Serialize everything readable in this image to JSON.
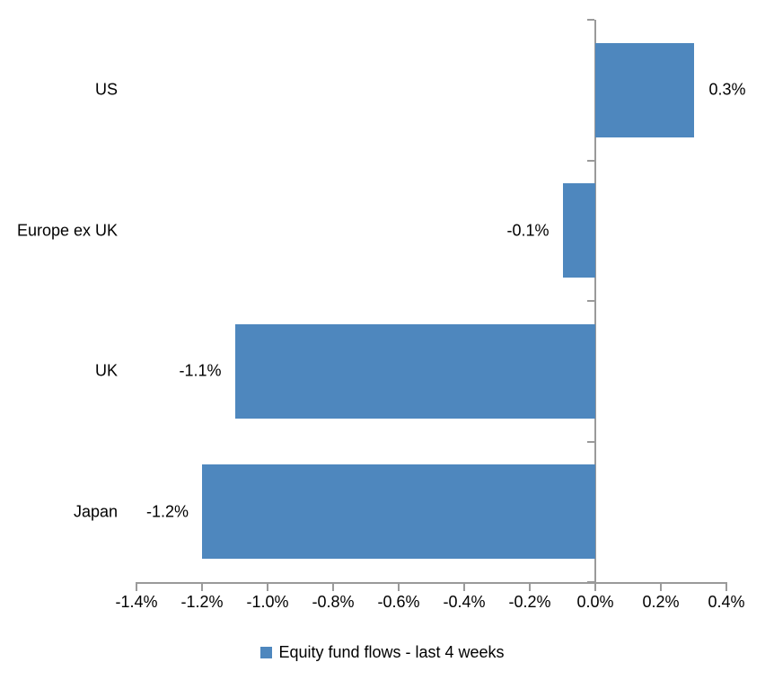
{
  "chart_data": {
    "type": "bar",
    "orientation": "horizontal",
    "title": "",
    "xlabel": "",
    "ylabel": "",
    "categories": [
      "US",
      "Europe ex UK",
      "UK",
      "Japan"
    ],
    "series": [
      {
        "name": "Equity fund flows - last 4 weeks",
        "values": [
          0.3,
          -0.1,
          -1.1,
          -1.2
        ],
        "labels": [
          "0.3%",
          "-0.1%",
          "-1.1%",
          "-1.2%"
        ]
      }
    ],
    "xlim": [
      -1.4,
      0.4
    ],
    "x_tick_values": [
      -1.4,
      -1.2,
      -1.0,
      -0.8,
      -0.6,
      -0.4,
      -0.2,
      0.0,
      0.2,
      0.4
    ],
    "x_tick_labels": [
      "-1.4%",
      "-1.2%",
      "-1.0%",
      "-0.8%",
      "-0.6%",
      "-0.4%",
      "-0.2%",
      "0.0%",
      "0.2%",
      "0.4%"
    ],
    "grid": false,
    "legend": {
      "position": "bottom",
      "label": "Equity fund flows - last 4 weeks"
    },
    "colors": {
      "bar": "#4e87be",
      "axis": "#9a9a9a",
      "text": "#000000",
      "background": "#ffffff"
    }
  }
}
